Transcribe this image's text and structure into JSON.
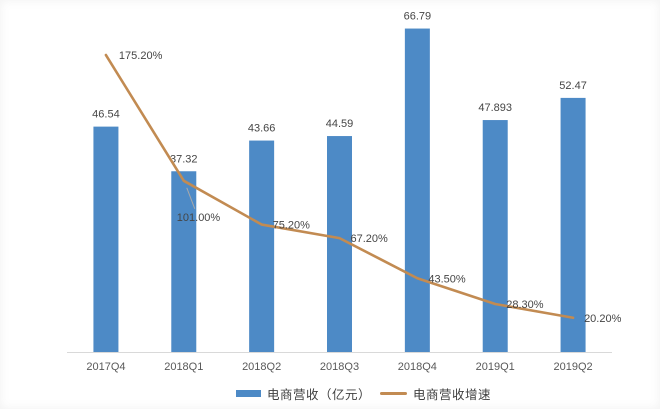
{
  "chart_data": {
    "type": "combo",
    "title": "",
    "categories": [
      "2017Q4",
      "2018Q1",
      "2018Q2",
      "2018Q3",
      "2018Q4",
      "2019Q1",
      "2019Q2"
    ],
    "series": [
      {
        "name": "电商营收（亿元）",
        "type": "bar",
        "axis": "primary",
        "color": "#4d8ac6",
        "values": [
          46.54,
          37.32,
          43.66,
          44.59,
          66.79,
          47.893,
          52.47
        ],
        "labels": [
          "46.54",
          "37.32",
          "43.66",
          "44.59",
          "66.79",
          "47.893",
          "52.47"
        ]
      },
      {
        "name": "电商营收增速",
        "type": "line",
        "axis": "secondary",
        "color": "#c28b52",
        "values": [
          175.2,
          101.0,
          75.2,
          67.2,
          43.5,
          28.3,
          20.2
        ],
        "labels": [
          "175.20%",
          "101.00%",
          "75.20%",
          "67.20%",
          "43.50%",
          "28.30%",
          "20.20%"
        ]
      }
    ],
    "xlabel": "",
    "ylabel": "",
    "ylim": [
      0,
      70
    ],
    "y2lim": [
      0,
      200
    ],
    "grid": false,
    "axes_visible": false,
    "legend_position": "bottom",
    "colors": {
      "data_label": "#454545",
      "axis_text": "#595959",
      "axis_line": "#d9d9d9",
      "leader_line": "#a9a9a9",
      "background": "#ffffff"
    }
  }
}
